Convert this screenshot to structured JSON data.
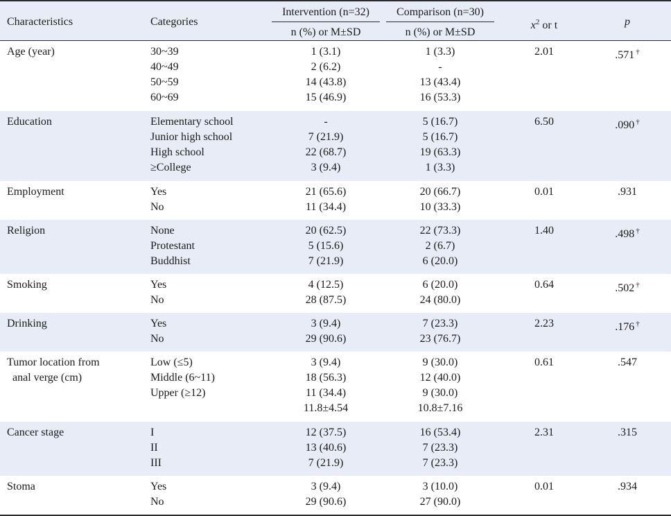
{
  "header": {
    "characteristics": "Characteristics",
    "categories": "Categories",
    "intervention": "Intervention (n=32)",
    "comparison": "Comparison (n=30)",
    "sub_intervention": "n (%) or M±SD",
    "sub_comparison": "n (%) or M±SD",
    "x2_symbol": "x",
    "x2_sup": "2",
    "x2_rest": " or t",
    "p": "p"
  },
  "dagger": "†",
  "groups": [
    {
      "name": "Age (year)",
      "categories": [
        "30~39",
        "40~49",
        "50~59",
        "60~69"
      ],
      "intervention": [
        "1 (3.1)",
        "2 (6.2)",
        "14 (43.8)",
        "15 (46.9)"
      ],
      "comparison": [
        "1 (3.3)",
        "-",
        "13 (43.4)",
        "16 (53.3)"
      ],
      "x2": "2.01",
      "p": ".571",
      "dagger": true
    },
    {
      "name": "Education",
      "categories": [
        "Elementary school",
        "Junior high school",
        "High school",
        "≥College"
      ],
      "intervention": [
        "-",
        "7 (21.9)",
        "22 (68.7)",
        "3 (9.4)"
      ],
      "comparison": [
        "5 (16.7)",
        "5 (16.7)",
        "19 (63.3)",
        "1 (3.3)"
      ],
      "x2": "6.50",
      "p": ".090",
      "dagger": true
    },
    {
      "name": "Employment",
      "categories": [
        "Yes",
        "No"
      ],
      "intervention": [
        "21 (65.6)",
        "11 (34.4)"
      ],
      "comparison": [
        "20 (66.7)",
        "10 (33.3)"
      ],
      "x2": "0.01",
      "p": ".931",
      "dagger": false
    },
    {
      "name": "Religion",
      "categories": [
        "None",
        "Protestant",
        "Buddhist"
      ],
      "intervention": [
        "20 (62.5)",
        "5 (15.6)",
        "7 (21.9)"
      ],
      "comparison": [
        "22 (73.3)",
        "2 (6.7)",
        "6 (20.0)"
      ],
      "x2": "1.40",
      "p": ".498",
      "dagger": true
    },
    {
      "name": "Smoking",
      "categories": [
        "Yes",
        "No"
      ],
      "intervention": [
        "4 (12.5)",
        "28 (87.5)"
      ],
      "comparison": [
        "6 (20.0)",
        "24 (80.0)"
      ],
      "x2": "0.64",
      "p": ".502",
      "dagger": true
    },
    {
      "name": "Drinking",
      "categories": [
        "Yes",
        "No"
      ],
      "intervention": [
        "3 (9.4)",
        "29 (90.6)"
      ],
      "comparison": [
        "7 (23.3)",
        "23 (76.7)"
      ],
      "x2": "2.23",
      "p": ".176",
      "dagger": true
    },
    {
      "name": "Tumor location from\n  anal verge (cm)",
      "categories": [
        "Low (≤5)",
        "Middle (6~11)",
        "Upper (≥12)",
        ""
      ],
      "intervention": [
        "3 (9.4)",
        "18 (56.3)",
        "11 (34.4)",
        "11.8±4.54"
      ],
      "comparison": [
        "9 (30.0)",
        "12 (40.0)",
        "9 (30.0)",
        "10.8±7.16"
      ],
      "x2": "0.61",
      "p": ".547",
      "dagger": false
    },
    {
      "name": "Cancer stage",
      "categories": [
        "I",
        "II",
        "III"
      ],
      "intervention": [
        "12 (37.5)",
        "13 (40.6)",
        "7 (21.9)"
      ],
      "comparison": [
        "16 (53.4)",
        "7 (23.3)",
        "7 (23.3)"
      ],
      "x2": "2.31",
      "p": ".315",
      "dagger": false
    },
    {
      "name": "Stoma",
      "categories": [
        "Yes",
        "No"
      ],
      "intervention": [
        "3 (9.4)",
        "29 (90.6)"
      ],
      "comparison": [
        "3 (10.0)",
        "27 (90.0)"
      ],
      "x2": "0.01",
      "p": ".934",
      "dagger": false
    }
  ]
}
